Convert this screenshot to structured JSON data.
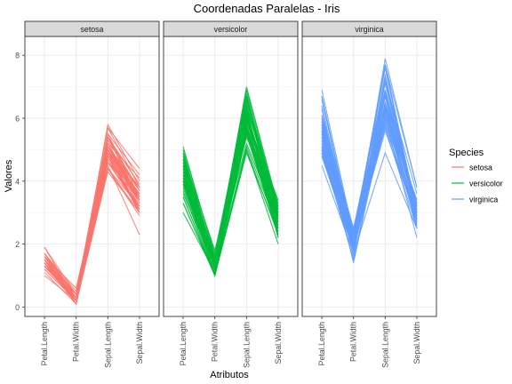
{
  "chart_data": {
    "type": "line",
    "title": "Coordenadas Paralelas - Iris",
    "xlabel": "Atributos",
    "ylabel": "Valores",
    "ylim": [
      -0.3,
      8.6
    ],
    "yticks": [
      0,
      2,
      4,
      6,
      8
    ],
    "categories": [
      "Petal.Length",
      "Petal.Width",
      "Sepal.Length",
      "Sepal.Width"
    ],
    "legend": {
      "title": "Species",
      "position": "right"
    },
    "grid": true,
    "facets": [
      {
        "name": "setosa",
        "color": "#F8766D",
        "series": [
          [
            1.4,
            0.2,
            5.1,
            3.5
          ],
          [
            1.4,
            0.2,
            4.9,
            3.0
          ],
          [
            1.3,
            0.2,
            4.7,
            3.2
          ],
          [
            1.5,
            0.2,
            4.6,
            3.1
          ],
          [
            1.4,
            0.2,
            5.0,
            3.6
          ],
          [
            1.7,
            0.4,
            5.4,
            3.9
          ],
          [
            1.4,
            0.3,
            4.6,
            3.4
          ],
          [
            1.5,
            0.2,
            5.0,
            3.4
          ],
          [
            1.4,
            0.2,
            4.4,
            2.9
          ],
          [
            1.5,
            0.1,
            4.9,
            3.1
          ],
          [
            1.5,
            0.2,
            5.4,
            3.7
          ],
          [
            1.6,
            0.2,
            4.8,
            3.4
          ],
          [
            1.4,
            0.1,
            4.8,
            3.0
          ],
          [
            1.1,
            0.1,
            4.3,
            3.0
          ],
          [
            1.2,
            0.2,
            5.8,
            4.0
          ],
          [
            1.5,
            0.4,
            5.7,
            4.4
          ],
          [
            1.3,
            0.4,
            5.4,
            3.9
          ],
          [
            1.4,
            0.3,
            5.1,
            3.5
          ],
          [
            1.7,
            0.3,
            5.7,
            3.8
          ],
          [
            1.5,
            0.3,
            5.1,
            3.8
          ],
          [
            1.7,
            0.2,
            5.4,
            3.4
          ],
          [
            1.5,
            0.4,
            5.1,
            3.7
          ],
          [
            1.0,
            0.2,
            4.6,
            3.6
          ],
          [
            1.7,
            0.5,
            5.1,
            3.3
          ],
          [
            1.9,
            0.2,
            4.8,
            3.4
          ],
          [
            1.6,
            0.2,
            5.0,
            3.0
          ],
          [
            1.6,
            0.4,
            5.0,
            3.4
          ],
          [
            1.5,
            0.2,
            5.2,
            3.5
          ],
          [
            1.4,
            0.2,
            5.2,
            3.4
          ],
          [
            1.6,
            0.2,
            4.7,
            3.2
          ],
          [
            1.6,
            0.2,
            4.8,
            3.1
          ],
          [
            1.5,
            0.4,
            5.4,
            3.4
          ],
          [
            1.5,
            0.1,
            5.2,
            4.1
          ],
          [
            1.4,
            0.2,
            5.5,
            4.2
          ],
          [
            1.5,
            0.2,
            4.9,
            3.1
          ],
          [
            1.2,
            0.2,
            5.0,
            3.2
          ],
          [
            1.3,
            0.2,
            5.5,
            3.5
          ],
          [
            1.4,
            0.1,
            4.9,
            3.6
          ],
          [
            1.3,
            0.2,
            4.4,
            3.0
          ],
          [
            1.5,
            0.2,
            5.1,
            3.4
          ],
          [
            1.3,
            0.3,
            5.0,
            3.5
          ],
          [
            1.3,
            0.3,
            4.5,
            2.3
          ],
          [
            1.3,
            0.2,
            4.4,
            3.2
          ],
          [
            1.6,
            0.6,
            5.0,
            3.5
          ],
          [
            1.9,
            0.4,
            5.1,
            3.8
          ],
          [
            1.4,
            0.3,
            4.8,
            3.0
          ],
          [
            1.6,
            0.2,
            5.1,
            3.8
          ],
          [
            1.4,
            0.2,
            4.6,
            3.2
          ],
          [
            1.5,
            0.2,
            5.3,
            3.7
          ],
          [
            1.4,
            0.2,
            5.0,
            3.3
          ]
        ]
      },
      {
        "name": "versicolor",
        "color": "#00BA38",
        "series": [
          [
            4.7,
            1.4,
            7.0,
            3.2
          ],
          [
            4.5,
            1.5,
            6.4,
            3.2
          ],
          [
            4.9,
            1.5,
            6.9,
            3.1
          ],
          [
            4.0,
            1.3,
            5.5,
            2.3
          ],
          [
            4.6,
            1.5,
            6.5,
            2.8
          ],
          [
            4.5,
            1.3,
            5.7,
            2.8
          ],
          [
            4.7,
            1.6,
            6.3,
            3.3
          ],
          [
            3.3,
            1.0,
            4.9,
            2.4
          ],
          [
            4.6,
            1.3,
            6.6,
            2.9
          ],
          [
            3.9,
            1.4,
            5.2,
            2.7
          ],
          [
            3.5,
            1.0,
            5.0,
            2.0
          ],
          [
            4.2,
            1.5,
            5.9,
            3.0
          ],
          [
            4.0,
            1.0,
            6.0,
            2.2
          ],
          [
            4.7,
            1.4,
            6.1,
            2.9
          ],
          [
            3.6,
            1.3,
            5.6,
            2.9
          ],
          [
            4.4,
            1.4,
            6.7,
            3.1
          ],
          [
            4.5,
            1.5,
            5.6,
            3.0
          ],
          [
            4.1,
            1.0,
            5.8,
            2.7
          ],
          [
            4.5,
            1.5,
            6.2,
            2.2
          ],
          [
            3.9,
            1.1,
            5.6,
            2.5
          ],
          [
            4.8,
            1.8,
            5.9,
            3.2
          ],
          [
            4.0,
            1.3,
            6.1,
            2.8
          ],
          [
            4.9,
            1.5,
            6.3,
            2.5
          ],
          [
            4.7,
            1.2,
            6.1,
            2.8
          ],
          [
            4.3,
            1.3,
            6.4,
            2.9
          ],
          [
            4.4,
            1.4,
            6.6,
            3.0
          ],
          [
            4.8,
            1.4,
            6.8,
            2.8
          ],
          [
            5.0,
            1.7,
            6.7,
            3.0
          ],
          [
            4.5,
            1.5,
            6.0,
            2.9
          ],
          [
            3.5,
            1.0,
            5.7,
            2.6
          ],
          [
            3.8,
            1.1,
            5.5,
            2.4
          ],
          [
            3.7,
            1.0,
            5.5,
            2.4
          ],
          [
            3.9,
            1.2,
            5.8,
            2.7
          ],
          [
            5.1,
            1.6,
            6.0,
            2.7
          ],
          [
            4.5,
            1.5,
            5.4,
            3.0
          ],
          [
            4.5,
            1.6,
            6.0,
            3.4
          ],
          [
            4.7,
            1.5,
            6.7,
            3.1
          ],
          [
            4.4,
            1.3,
            6.3,
            2.3
          ],
          [
            4.1,
            1.3,
            5.6,
            3.0
          ],
          [
            4.0,
            1.3,
            5.5,
            2.5
          ],
          [
            4.4,
            1.2,
            5.5,
            2.6
          ],
          [
            4.6,
            1.4,
            6.1,
            3.0
          ],
          [
            4.0,
            1.2,
            5.8,
            2.6
          ],
          [
            3.3,
            1.0,
            5.0,
            2.3
          ],
          [
            4.2,
            1.3,
            5.6,
            2.7
          ],
          [
            4.2,
            1.2,
            5.7,
            3.0
          ],
          [
            4.2,
            1.3,
            5.7,
            2.9
          ],
          [
            4.3,
            1.3,
            6.2,
            2.9
          ],
          [
            3.0,
            1.1,
            5.1,
            2.5
          ],
          [
            4.1,
            1.3,
            5.7,
            2.8
          ]
        ]
      },
      {
        "name": "virginica",
        "color": "#619CFF",
        "series": [
          [
            6.0,
            2.5,
            6.3,
            3.3
          ],
          [
            5.1,
            1.9,
            5.8,
            2.7
          ],
          [
            5.9,
            2.1,
            7.1,
            3.0
          ],
          [
            5.6,
            1.8,
            6.3,
            2.9
          ],
          [
            5.8,
            2.2,
            6.5,
            3.0
          ],
          [
            6.6,
            2.1,
            7.6,
            3.0
          ],
          [
            4.5,
            1.7,
            4.9,
            2.5
          ],
          [
            6.3,
            1.8,
            7.3,
            2.9
          ],
          [
            5.8,
            1.8,
            6.7,
            2.5
          ],
          [
            6.1,
            2.5,
            7.2,
            3.6
          ],
          [
            5.1,
            2.0,
            6.5,
            3.2
          ],
          [
            5.3,
            1.9,
            6.4,
            2.7
          ],
          [
            5.5,
            2.1,
            6.8,
            3.0
          ],
          [
            5.0,
            2.0,
            5.7,
            2.5
          ],
          [
            5.1,
            2.4,
            5.8,
            2.8
          ],
          [
            5.3,
            2.3,
            6.4,
            3.2
          ],
          [
            5.5,
            1.8,
            6.5,
            3.0
          ],
          [
            6.7,
            2.2,
            7.7,
            3.8
          ],
          [
            6.9,
            2.3,
            7.7,
            2.6
          ],
          [
            5.0,
            1.5,
            6.0,
            2.2
          ],
          [
            5.7,
            2.3,
            6.9,
            3.2
          ],
          [
            4.9,
            2.0,
            5.6,
            2.8
          ],
          [
            6.7,
            2.0,
            7.7,
            2.8
          ],
          [
            4.9,
            1.8,
            6.3,
            2.7
          ],
          [
            5.7,
            2.1,
            6.7,
            3.3
          ],
          [
            6.0,
            1.8,
            7.2,
            3.2
          ],
          [
            4.8,
            1.8,
            6.2,
            2.8
          ],
          [
            4.9,
            1.8,
            6.1,
            3.0
          ],
          [
            5.6,
            2.1,
            6.4,
            2.8
          ],
          [
            5.8,
            1.6,
            7.2,
            3.0
          ],
          [
            6.1,
            1.9,
            7.4,
            2.8
          ],
          [
            6.4,
            2.0,
            7.9,
            3.8
          ],
          [
            5.6,
            2.2,
            6.4,
            2.8
          ],
          [
            5.1,
            1.5,
            6.3,
            2.8
          ],
          [
            5.6,
            1.4,
            6.1,
            2.6
          ],
          [
            6.1,
            2.3,
            7.7,
            3.0
          ],
          [
            5.6,
            2.4,
            6.3,
            3.4
          ],
          [
            5.5,
            1.8,
            6.4,
            3.1
          ],
          [
            4.8,
            1.8,
            6.0,
            3.0
          ],
          [
            5.4,
            2.1,
            6.9,
            3.1
          ],
          [
            5.6,
            2.4,
            6.7,
            3.1
          ],
          [
            5.1,
            2.3,
            6.9,
            3.1
          ],
          [
            5.1,
            1.9,
            5.8,
            2.7
          ],
          [
            5.9,
            2.3,
            6.8,
            3.2
          ],
          [
            5.7,
            2.5,
            6.7,
            3.3
          ],
          [
            5.2,
            2.3,
            6.7,
            3.0
          ],
          [
            5.0,
            1.9,
            6.3,
            2.5
          ],
          [
            5.2,
            2.0,
            6.5,
            3.0
          ],
          [
            5.4,
            2.3,
            6.2,
            3.4
          ],
          [
            5.1,
            1.8,
            5.9,
            3.0
          ]
        ]
      }
    ]
  }
}
